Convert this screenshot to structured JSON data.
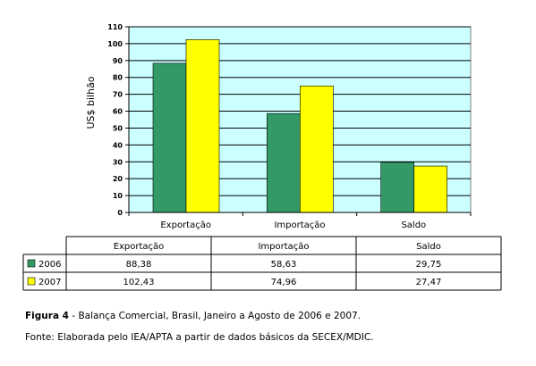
{
  "chart_data": {
    "type": "bar",
    "categories": [
      "Exportação",
      "Importação",
      "Saldo"
    ],
    "series": [
      {
        "name": "2006",
        "values": [
          88.38,
          58.63,
          29.75
        ],
        "value_labels": [
          "88,38",
          "58,63",
          "29,75"
        ],
        "color": "#339966"
      },
      {
        "name": "2007",
        "values": [
          102.43,
          74.96,
          27.47
        ],
        "value_labels": [
          "102,43",
          "74,96",
          "27,47"
        ],
        "color": "#ffff00"
      }
    ],
    "ylabel": "US$ bilhão",
    "ylim": [
      0,
      110
    ],
    "yticks": [
      0,
      10,
      20,
      30,
      40,
      50,
      60,
      70,
      80,
      90,
      100,
      110
    ],
    "grid": true,
    "plot_background": "#ccffff",
    "legend": "data-table"
  },
  "caption": {
    "figure_label": "Figura 4",
    "figure_text": " - Balança Comercial, Brasil, Janeiro a Agosto de 2006 e 2007.",
    "source": "Fonte: Elaborada pelo IEA/APTA a partir de dados básicos da SECEX/MDIC."
  }
}
